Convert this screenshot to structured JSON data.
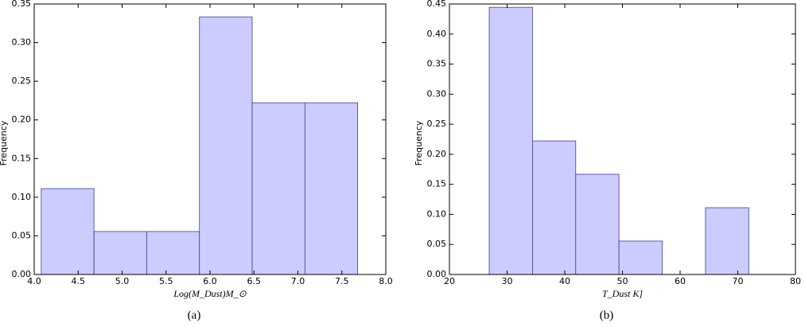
{
  "chart_data": [
    {
      "type": "histogram",
      "caption": "(a)",
      "x_label": "Log(M_Dust)M_⊙",
      "y_label": "Frequency",
      "bins": [
        4.08,
        4.68,
        5.28,
        5.88,
        6.48,
        7.08,
        7.68
      ],
      "values": [
        0.1111,
        0.0556,
        0.0556,
        0.3333,
        0.2222,
        0.2222
      ],
      "color": "#ccccff",
      "edgecolor": "#3d3d99",
      "xlim": [
        4.0,
        8.0
      ],
      "xticks": [
        {
          "value": 4.0,
          "label": "4.0"
        },
        4.5,
        {
          "value": 5.0,
          "label": "5.0"
        },
        5.5,
        {
          "value": 6.0,
          "label": "6.0"
        },
        6.5,
        {
          "value": 7.0,
          "label": "7.0"
        },
        7.5,
        {
          "value": 8.0,
          "label": "8.0"
        }
      ],
      "ylim": [
        0,
        0.35
      ],
      "yticks": [
        {
          "value": 0,
          "label": "0.00"
        },
        0.05,
        {
          "value": 0.1,
          "label": "0.10"
        },
        0.15,
        {
          "value": 0.2,
          "label": "0.20"
        },
        0.25,
        {
          "value": 0.3,
          "label": "0.30"
        },
        0.35
      ]
    },
    {
      "type": "histogram",
      "caption": "(b)",
      "x_label": "T_Dust K]",
      "y_label": "Frequency",
      "bins": [
        26.9,
        34.4,
        41.9,
        49.4,
        56.9,
        64.4,
        71.9
      ],
      "values": [
        0.4444,
        0.2222,
        0.1667,
        0.0556,
        0,
        0.1111
      ],
      "color": "#ccccff",
      "edgecolor": "#3d3d99",
      "xlim": [
        20,
        80
      ],
      "xticks": [
        20,
        30,
        40,
        50,
        60,
        70,
        80
      ],
      "ylim": [
        0,
        0.45
      ],
      "yticks": [
        {
          "value": 0,
          "label": "0.00"
        },
        0.05,
        {
          "value": 0.1,
          "label": "0.10"
        },
        0.15,
        {
          "value": 0.2,
          "label": "0.20"
        },
        0.25,
        {
          "value": 0.3,
          "label": "0.30"
        },
        0.35,
        {
          "value": 0.4,
          "label": "0.40"
        },
        0.45
      ]
    }
  ]
}
